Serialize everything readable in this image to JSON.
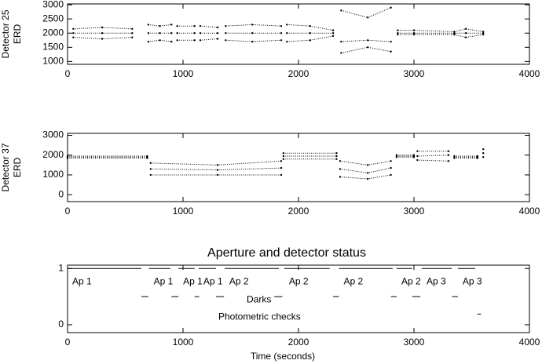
{
  "chart_data": [
    {
      "type": "line",
      "ylabel": [
        "Detector 25",
        "ERD"
      ],
      "xlim": [
        0,
        4000
      ],
      "xticks": [
        0,
        1000,
        2000,
        3000,
        4000
      ],
      "ylim": [
        900,
        3030
      ],
      "yticks": [
        1000,
        1500,
        2000,
        2500,
        3000
      ],
      "x": [
        50,
        300,
        560,
        630,
        700,
        800,
        900,
        925,
        950,
        1100,
        1125,
        1150,
        1300,
        1335,
        1370,
        1600,
        1850,
        1875,
        1900,
        2100,
        2300,
        2335,
        2370,
        2600,
        2800,
        2830,
        2860,
        3000,
        3350,
        3450,
        3600
      ],
      "series": [
        {
          "color": "#000000",
          "values": [
            2150,
            2200,
            2150,
            null,
            2300,
            2250,
            2300,
            null,
            2250,
            2250,
            null,
            2250,
            2200,
            null,
            2250,
            2300,
            2250,
            null,
            2300,
            2250,
            2100,
            null,
            2800,
            2550,
            2900,
            null,
            2100,
            2100,
            2050,
            2150,
            2050
          ]
        },
        {
          "color": "#000000",
          "values": [
            2000,
            2000,
            2000,
            null,
            2000,
            2000,
            2000,
            null,
            2000,
            2000,
            null,
            2000,
            2000,
            null,
            2000,
            2000,
            2000,
            null,
            2000,
            2000,
            2000,
            null,
            1700,
            1750,
            1700,
            null,
            2000,
            2000,
            2000,
            2000,
            2000
          ]
        },
        {
          "color": "#000000",
          "values": [
            1850,
            1800,
            1850,
            null,
            1700,
            1750,
            1700,
            null,
            1750,
            1750,
            null,
            1750,
            1800,
            null,
            1750,
            1700,
            1750,
            null,
            1700,
            1750,
            1900,
            null,
            1300,
            1500,
            1350,
            null,
            1950,
            1950,
            1950,
            1850,
            1950
          ]
        }
      ]
    },
    {
      "type": "line",
      "ylabel": [
        "Detector 37",
        "ERD"
      ],
      "xlim": [
        0,
        4000
      ],
      "xticks": [
        0,
        1000,
        2000,
        3000,
        4000
      ],
      "ylim": [
        -350,
        3100
      ],
      "yticks": [
        0,
        1000,
        2000,
        3000
      ],
      "x": [
        0,
        690,
        710,
        720,
        1300,
        1850,
        1860,
        1870,
        2330,
        2345,
        2360,
        2600,
        2800,
        2825,
        2850,
        3000,
        3015,
        3030,
        3300,
        3325,
        3350,
        3550,
        3575,
        3600
      ],
      "series": [
        {
          "color": "#000000",
          "values": [
            1950,
            1950,
            null,
            1600,
            1500,
            1700,
            null,
            2100,
            2100,
            null,
            1700,
            1500,
            1700,
            null,
            2000,
            2000,
            null,
            2200,
            2200,
            null,
            1950,
            1950,
            null,
            2300
          ]
        },
        {
          "color": "#000000",
          "values": [
            1900,
            1900,
            null,
            1300,
            1250,
            1350,
            null,
            1950,
            1950,
            null,
            1300,
            1100,
            1350,
            null,
            1950,
            1950,
            null,
            1950,
            2000,
            null,
            1900,
            1900,
            null,
            2100
          ]
        },
        {
          "color": "#000000",
          "values": [
            1850,
            1850,
            null,
            1000,
            1000,
            1000,
            null,
            1800,
            1800,
            null,
            900,
            800,
            1000,
            null,
            1900,
            1900,
            null,
            1750,
            1700,
            null,
            1850,
            1850,
            null,
            1900
          ]
        }
      ]
    },
    {
      "type": "status",
      "title": "Aperture and detector status",
      "xlabel": "Time (seconds)",
      "xlim": [
        0,
        4000
      ],
      "xticks": [
        0,
        1000,
        2000,
        3000,
        4000
      ],
      "ylim": [
        -0.14,
        1.06
      ],
      "yticks": [
        0,
        1
      ],
      "groups": [
        {
          "level": 1,
          "segments": [
            {
              "label": "Ap 1",
              "start": 0,
              "end": 640
            },
            {
              "label": "Ap 1",
              "start": 705,
              "end": 890
            },
            {
              "label": "Ap 1",
              "start": 960,
              "end": 1100
            },
            {
              "label": "Ap 1",
              "start": 1135,
              "end": 1285
            },
            {
              "label": "Ap 2",
              "start": 1360,
              "end": 1830
            },
            {
              "label": "Ap 2",
              "start": 1877,
              "end": 2270
            },
            {
              "label": "Ap 2",
              "start": 2350,
              "end": 2816
            },
            {
              "label": "Ap 2",
              "start": 2850,
              "end": 2985
            },
            {
              "label": "Ap 3",
              "start": 3068,
              "end": 3327
            },
            {
              "label": "Ap 3",
              "start": 3380,
              "end": 3530
            }
          ]
        },
        {
          "label": "Darks",
          "level": 0.5,
          "segments": [
            {
              "start": 640,
              "end": 700
            },
            {
              "start": 900,
              "end": 960
            },
            {
              "start": 1100,
              "end": 1140
            },
            {
              "start": 1285,
              "end": 1355
            },
            {
              "start": 1790,
              "end": 1860
            },
            {
              "start": 2300,
              "end": 2350
            },
            {
              "start": 2800,
              "end": 2850
            },
            {
              "start": 2985,
              "end": 3055
            },
            {
              "start": 3330,
              "end": 3380
            }
          ]
        },
        {
          "label": "Photometric checks",
          "level": 0.19,
          "segments": [
            {
              "start": 3550,
              "end": 3580
            }
          ]
        }
      ]
    }
  ]
}
